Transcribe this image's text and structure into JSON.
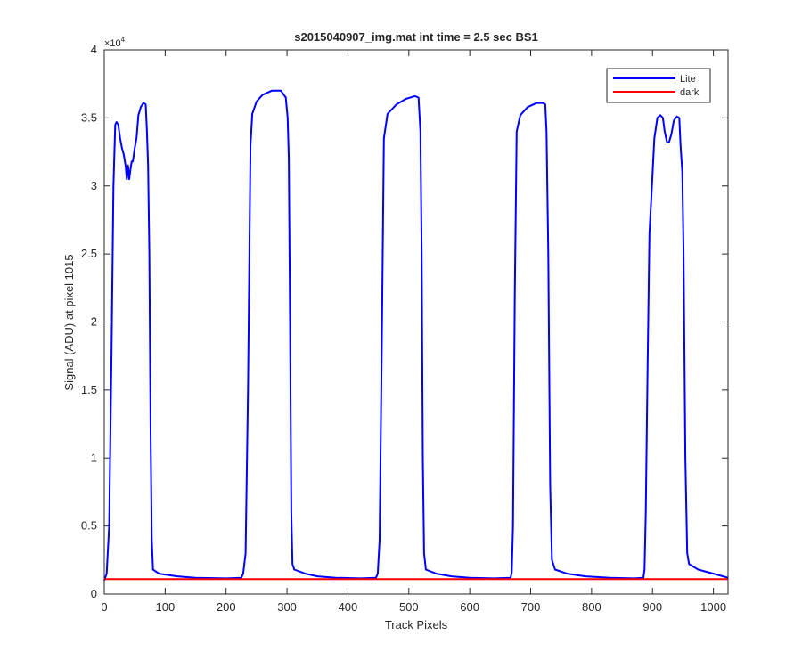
{
  "chart_data": {
    "type": "line",
    "title": "s2015040907_img.mat int time = 2.5 sec   BS1",
    "xlabel": "Track Pixels",
    "ylabel": "Signal (ADU) at pixel 1015",
    "xlim": [
      0,
      1024
    ],
    "ylim": [
      0,
      40000
    ],
    "y_exponent_label": "×10",
    "y_exponent_power": "4",
    "xticks": [
      0,
      100,
      200,
      300,
      400,
      500,
      600,
      700,
      800,
      900,
      1000
    ],
    "xtick_labels": [
      "0",
      "100",
      "200",
      "300",
      "400",
      "500",
      "600",
      "700",
      "800",
      "900",
      "1000"
    ],
    "yticks": [
      0,
      5000,
      10000,
      15000,
      20000,
      25000,
      30000,
      35000,
      40000
    ],
    "ytick_labels": [
      "0",
      "0.5",
      "1",
      "1.5",
      "2",
      "2.5",
      "3",
      "3.5",
      "4"
    ],
    "legend_position": "top-right",
    "series": [
      {
        "name": "Lite",
        "color": "#0000ff",
        "points": [
          [
            0,
            1000
          ],
          [
            4,
            1500
          ],
          [
            8,
            5000
          ],
          [
            12,
            18000
          ],
          [
            15,
            30000
          ],
          [
            18,
            34500
          ],
          [
            20,
            34700
          ],
          [
            23,
            34500
          ],
          [
            26,
            33500
          ],
          [
            29,
            32800
          ],
          [
            32,
            32300
          ],
          [
            35,
            31500
          ],
          [
            37,
            30500
          ],
          [
            39,
            31500
          ],
          [
            41,
            30500
          ],
          [
            43,
            31200
          ],
          [
            45,
            31800
          ],
          [
            47,
            31800
          ],
          [
            50,
            32800
          ],
          [
            53,
            33500
          ],
          [
            56,
            35200
          ],
          [
            60,
            35800
          ],
          [
            64,
            36100
          ],
          [
            68,
            36000
          ],
          [
            70,
            34000
          ],
          [
            72,
            31500
          ],
          [
            74,
            25000
          ],
          [
            76,
            12000
          ],
          [
            78,
            4000
          ],
          [
            80,
            1800
          ],
          [
            90,
            1500
          ],
          [
            120,
            1300
          ],
          [
            150,
            1200
          ],
          [
            200,
            1150
          ],
          [
            225,
            1200
          ],
          [
            228,
            1500
          ],
          [
            232,
            3000
          ],
          [
            236,
            15000
          ],
          [
            240,
            33000
          ],
          [
            243,
            35300
          ],
          [
            250,
            36200
          ],
          [
            260,
            36700
          ],
          [
            275,
            37000
          ],
          [
            290,
            37000
          ],
          [
            298,
            36500
          ],
          [
            301,
            35000
          ],
          [
            303,
            32000
          ],
          [
            305,
            20000
          ],
          [
            307,
            6000
          ],
          [
            309,
            2200
          ],
          [
            312,
            1800
          ],
          [
            330,
            1500
          ],
          [
            350,
            1300
          ],
          [
            380,
            1200
          ],
          [
            420,
            1150
          ],
          [
            446,
            1200
          ],
          [
            449,
            1500
          ],
          [
            452,
            4000
          ],
          [
            456,
            20000
          ],
          [
            459,
            33500
          ],
          [
            465,
            35300
          ],
          [
            480,
            36000
          ],
          [
            495,
            36400
          ],
          [
            510,
            36600
          ],
          [
            516,
            36500
          ],
          [
            519,
            34000
          ],
          [
            521,
            25000
          ],
          [
            523,
            10000
          ],
          [
            525,
            3000
          ],
          [
            528,
            1800
          ],
          [
            545,
            1500
          ],
          [
            570,
            1300
          ],
          [
            600,
            1200
          ],
          [
            640,
            1150
          ],
          [
            667,
            1200
          ],
          [
            669,
            1600
          ],
          [
            671,
            5000
          ],
          [
            674,
            22000
          ],
          [
            677,
            34000
          ],
          [
            683,
            35200
          ],
          [
            695,
            35800
          ],
          [
            710,
            36100
          ],
          [
            720,
            36100
          ],
          [
            724,
            36000
          ],
          [
            726,
            34000
          ],
          [
            729,
            25000
          ],
          [
            732,
            8000
          ],
          [
            735,
            2500
          ],
          [
            740,
            1800
          ],
          [
            760,
            1500
          ],
          [
            790,
            1300
          ],
          [
            830,
            1200
          ],
          [
            870,
            1150
          ],
          [
            885,
            1200
          ],
          [
            887,
            1800
          ],
          [
            889,
            6000
          ],
          [
            892,
            17000
          ],
          [
            895,
            26500
          ],
          [
            899,
            30000
          ],
          [
            903,
            33500
          ],
          [
            908,
            35000
          ],
          [
            913,
            35200
          ],
          [
            917,
            35000
          ],
          [
            920,
            34000
          ],
          [
            924,
            33200
          ],
          [
            927,
            33200
          ],
          [
            931,
            33800
          ],
          [
            935,
            34800
          ],
          [
            940,
            35100
          ],
          [
            944,
            35000
          ],
          [
            946,
            33000
          ],
          [
            949,
            31000
          ],
          [
            951,
            25000
          ],
          [
            954,
            10000
          ],
          [
            957,
            3000
          ],
          [
            960,
            2200
          ],
          [
            975,
            1800
          ],
          [
            1000,
            1500
          ],
          [
            1024,
            1200
          ]
        ]
      },
      {
        "name": "dark",
        "color": "#ff0000",
        "constant": 1100
      }
    ]
  }
}
